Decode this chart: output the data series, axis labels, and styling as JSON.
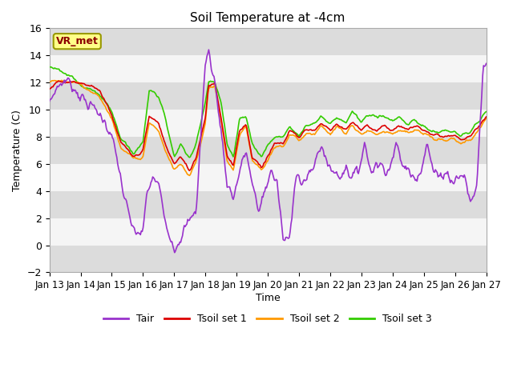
{
  "title": "Soil Temperature at -4cm",
  "xlabel": "Time",
  "ylabel": "Temperature (C)",
  "ylim": [
    -2,
    16
  ],
  "yticks": [
    -2,
    0,
    2,
    4,
    6,
    8,
    10,
    12,
    14,
    16
  ],
  "xtick_labels": [
    "Jan 13",
    "Jan 14",
    "Jan 15",
    "Jan 16",
    "Jan 17",
    "Jan 18",
    "Jan 19",
    "Jan 20",
    "Jan 21",
    "Jan 22",
    "Jan 23",
    "Jan 24",
    "Jan 25",
    "Jan 26",
    "Jan 27"
  ],
  "annotation_text": "VR_met",
  "annotation_color": "#8B0000",
  "annotation_bg": "#FFFF88",
  "annotation_border": "#999900",
  "colors": {
    "Tair": "#9933CC",
    "Tsoil1": "#DD0000",
    "Tsoil2": "#FF9900",
    "Tsoil3": "#33CC00"
  },
  "linewidth": 1.2,
  "bg_color": "#E8E8E8",
  "band_white": "#F5F5F5",
  "band_gray": "#DCDCDC"
}
